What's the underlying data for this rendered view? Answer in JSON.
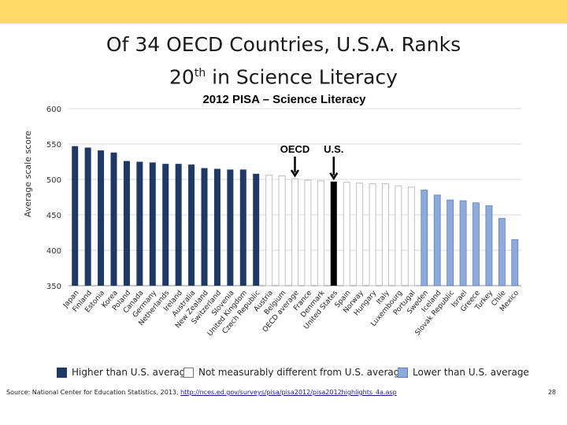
{
  "slide": {
    "title_line1": "Of 34 OECD Countries, U.S.A. Ranks",
    "title_line2_pre": "20",
    "title_line2_sup": "th",
    "title_line2_post": " in Science Literacy",
    "page_number": "28",
    "source_label": "Source:",
    "source_text": "National Center for Education Statistics, 2013, ",
    "source_link": "http://nces.ed.gov/surveys/pisa/pisa2012/pisa2012highlights_4a.asp"
  },
  "colors": {
    "top_bar": "#ffd966",
    "higher": "#1f3864",
    "similar": "#ffffff",
    "similar_stroke": "#bfbfbf",
    "lower": "#8eaadb",
    "lower_stroke": "#5b7fbf",
    "us": "#000000"
  },
  "legend": {
    "higher": "Higher than U.S. average",
    "similar": "Not measurably different from U.S. average",
    "lower": "Lower than U.S. average"
  },
  "chart_data": {
    "type": "bar",
    "title": "2012 PISA – Science Literacy",
    "xlabel": "",
    "ylabel": "Average scale score",
    "ylim": [
      350,
      600
    ],
    "yticks": [
      350,
      400,
      450,
      500,
      550,
      600
    ],
    "grid": true,
    "categories": [
      "Japan",
      "Finland",
      "Estonia",
      "Korea",
      "Poland",
      "Canada",
      "Germany",
      "Netherlands",
      "Ireland",
      "Australia",
      "New Zealand",
      "Switzerland",
      "Slovenia",
      "United Kingdom",
      "Czech Republic",
      "Austria",
      "Belgium",
      "OECD average",
      "France",
      "Denmark",
      "United States",
      "Spain",
      "Norway",
      "Hungary",
      "Italy",
      "Luxembourg",
      "Portugal",
      "Sweden",
      "Iceland",
      "Slovak Republic",
      "Israel",
      "Greece",
      "Turkey",
      "Chile",
      "Mexico"
    ],
    "values": [
      547,
      545,
      541,
      538,
      526,
      525,
      524,
      522,
      522,
      521,
      516,
      515,
      514,
      514,
      508,
      506,
      505,
      501,
      499,
      498,
      497,
      496,
      495,
      494,
      494,
      491,
      489,
      485,
      478,
      471,
      470,
      467,
      463,
      445,
      415
    ],
    "groups": [
      "higher",
      "higher",
      "higher",
      "higher",
      "higher",
      "higher",
      "higher",
      "higher",
      "higher",
      "higher",
      "higher",
      "higher",
      "higher",
      "higher",
      "higher",
      "similar",
      "similar",
      "similar",
      "similar",
      "similar",
      "us",
      "similar",
      "similar",
      "similar",
      "similar",
      "similar",
      "similar",
      "lower",
      "lower",
      "lower",
      "lower",
      "lower",
      "lower",
      "lower",
      "lower"
    ],
    "annotations": [
      {
        "text": "OECD",
        "category": "OECD average"
      },
      {
        "text": "U.S.",
        "category": "United States"
      }
    ]
  }
}
